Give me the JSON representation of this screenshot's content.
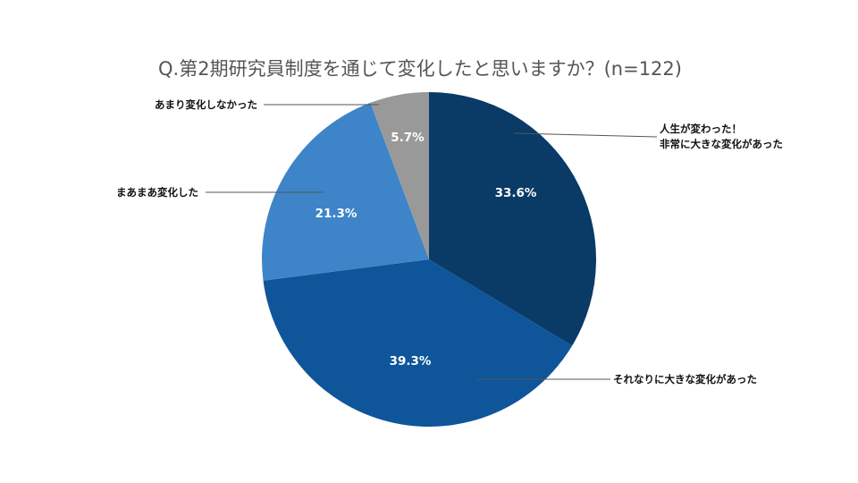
{
  "chart_data": {
    "type": "pie",
    "title": "Q.第2期研究員制度を通じて変化したと思いますか？(n=122)",
    "slices": [
      {
        "label_lines": [
          "人生が変わった！",
          "非常に大きな変化があった"
        ],
        "value": 33.6,
        "value_label": "33.6%",
        "color": "#0a3a66"
      },
      {
        "label_lines": [
          "それなりに大きな変化があった"
        ],
        "value": 39.3,
        "value_label": "39.3%",
        "color": "#0f5599"
      },
      {
        "label_lines": [
          "まあまあ変化した"
        ],
        "value": 21.3,
        "value_label": "21.3%",
        "color": "#3d85c8"
      },
      {
        "label_lines": [
          "あまり変化しなかった"
        ],
        "value": 5.7,
        "value_label": "5.7%",
        "color": "#999999"
      }
    ],
    "legend": "none"
  }
}
